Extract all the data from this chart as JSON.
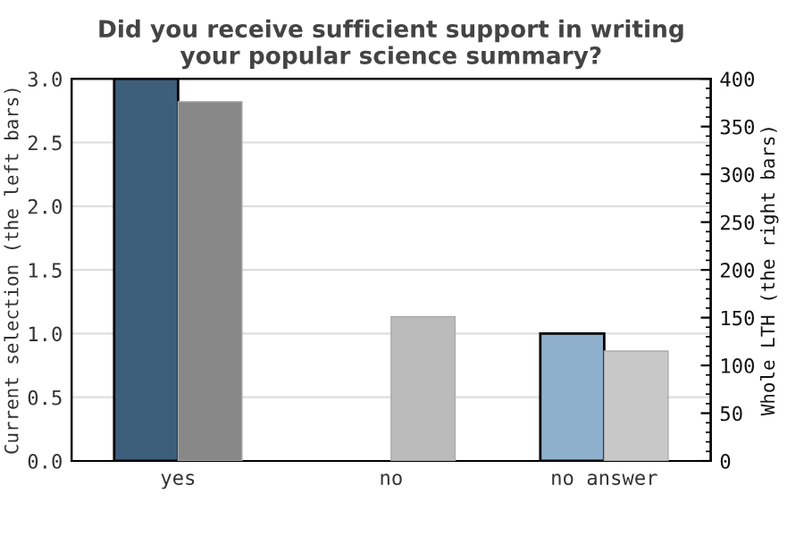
{
  "chart_data": {
    "type": "bar",
    "title": "Did you receive sufficient support in writing\nyour popular science summary?",
    "ylabel": "Current selection (the left bars)",
    "y2label": "Whole LTH (the right bars)",
    "categories": [
      "yes",
      "no",
      "no answer"
    ],
    "series": [
      {
        "colors": [
          "#3e5f7c",
          "#3e5f7c",
          "#8fb0cc"
        ],
        "values": [
          3,
          0,
          1
        ]
      },
      {
        "colors": [
          "#888888",
          "#bbbbbb",
          "#c8c8c8"
        ],
        "values": [
          376,
          151,
          115
        ],
        "axis": "y2"
      }
    ],
    "ylim": [
      0,
      3
    ],
    "yticks": [
      {
        "value": 0,
        "label": "0.0"
      },
      {
        "value": 0.5,
        "label": "0.5"
      },
      {
        "value": 1,
        "label": "1.0"
      },
      {
        "value": 1.5,
        "label": "1.5"
      },
      {
        "value": 2,
        "label": "2.0"
      },
      {
        "value": 2.5,
        "label": "2.5"
      },
      {
        "value": 3,
        "label": "3.0"
      }
    ],
    "y2lim": [
      0,
      400
    ],
    "y2ticks": [
      0,
      50,
      100,
      150,
      200,
      250,
      300,
      350,
      400
    ],
    "grid": "y",
    "legend": false
  }
}
